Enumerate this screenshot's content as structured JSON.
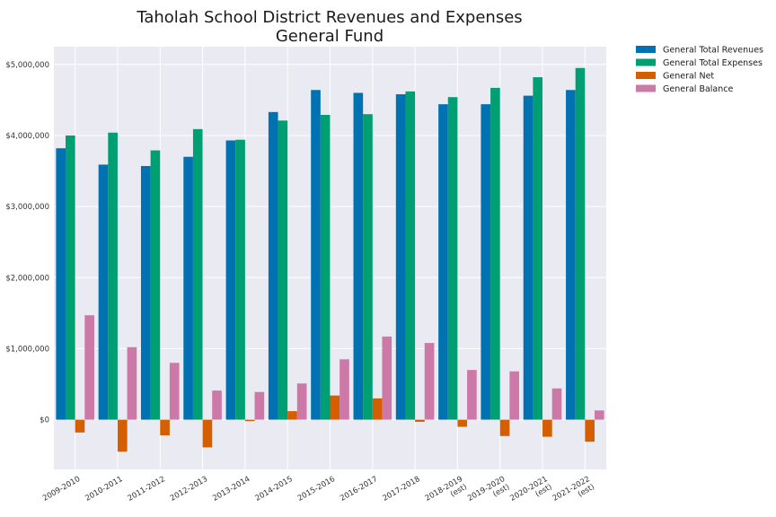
{
  "chart_data": {
    "type": "bar",
    "title": "Taholah School District Revenues and Expenses",
    "subtitle": "General Fund",
    "xlabel": "",
    "ylabel": "",
    "categories": [
      [
        "2009-2010"
      ],
      [
        "2010-2011"
      ],
      [
        "2011-2012"
      ],
      [
        "2012-2013"
      ],
      [
        "2013-2014"
      ],
      [
        "2014-2015"
      ],
      [
        "2015-2016"
      ],
      [
        "2016-2017"
      ],
      [
        "2017-2018"
      ],
      [
        "2018-2019",
        "(est)"
      ],
      [
        "2019-2020",
        "(est)"
      ],
      [
        "2020-2021",
        "(est)"
      ],
      [
        "2021-2022",
        "(est)"
      ]
    ],
    "ylim": [
      -700000,
      5250000
    ],
    "yticks": [
      0,
      1000000,
      2000000,
      3000000,
      4000000,
      5000000
    ],
    "ytick_labels": [
      "$0",
      "$1,000,000",
      "$2,000,000",
      "$3,000,000",
      "$4,000,000",
      "$5,000,000"
    ],
    "grid": true,
    "legend_position": "outside-top-right",
    "series": [
      {
        "name": "General Total Revenues",
        "color": "#0072B2",
        "values": [
          3820000,
          3590000,
          3570000,
          3700000,
          3930000,
          4330000,
          4640000,
          4600000,
          4580000,
          4440000,
          4440000,
          4560000,
          4640000
        ]
      },
      {
        "name": "General Total Expenses",
        "color": "#009E73",
        "values": [
          4000000,
          4040000,
          3790000,
          4090000,
          3940000,
          4210000,
          4290000,
          4300000,
          4620000,
          4540000,
          4670000,
          4820000,
          4950000
        ]
      },
      {
        "name": "General Net",
        "color": "#D55E00",
        "values": [
          -180000,
          -450000,
          -220000,
          -390000,
          -20000,
          120000,
          340000,
          300000,
          -30000,
          -100000,
          -230000,
          -240000,
          -310000
        ]
      },
      {
        "name": "General Balance",
        "color": "#CC79A7",
        "values": [
          1470000,
          1020000,
          800000,
          410000,
          390000,
          510000,
          850000,
          1170000,
          1080000,
          700000,
          680000,
          440000,
          130000
        ]
      }
    ]
  }
}
